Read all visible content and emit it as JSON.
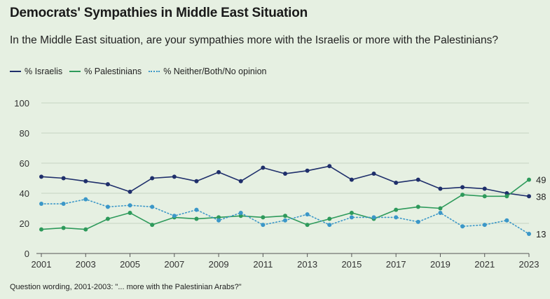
{
  "header": {
    "title": "Democrats' Sympathies in Middle East Situation",
    "subtitle": "In the Middle East situation, are your sympathies more with the Israelis or more with the Palestinians?"
  },
  "legend": [
    {
      "label": "% Israelis",
      "color": "#1f2f6b",
      "style": "solid"
    },
    {
      "label": "% Palestinians",
      "color": "#2e9a5b",
      "style": "solid"
    },
    {
      "label": "% Neither/Both/No opinion",
      "color": "#3b97c8",
      "style": "dotted"
    }
  ],
  "footnote": "Question wording, 2001-2003: \"... more with the Palestinian Arabs?\"",
  "chart_data": {
    "type": "line",
    "x": [
      2001,
      2002,
      2003,
      2004,
      2005,
      2006,
      2007,
      2008,
      2009,
      2010,
      2011,
      2012,
      2013,
      2014,
      2015,
      2016,
      2017,
      2018,
      2019,
      2020,
      2021,
      2022,
      2023
    ],
    "x_tick_labels": [
      "2001",
      "2003",
      "2005",
      "2007",
      "2009",
      "2011",
      "2013",
      "2015",
      "2017",
      "2019",
      "2021",
      "2023"
    ],
    "y_tick_labels": [
      "0",
      "20",
      "40",
      "60",
      "80",
      "100"
    ],
    "ylim": [
      0,
      100
    ],
    "grid": true,
    "legend_position": "top-left",
    "series": [
      {
        "name": "% Israelis",
        "color": "#1f2f6b",
        "style": "solid",
        "values": [
          51,
          50,
          48,
          46,
          41,
          50,
          51,
          48,
          54,
          48,
          57,
          53,
          55,
          58,
          49,
          53,
          47,
          49,
          43,
          44,
          43,
          40,
          38
        ],
        "end_label": "38"
      },
      {
        "name": "% Palestinians",
        "color": "#2e9a5b",
        "style": "solid",
        "values": [
          16,
          17,
          16,
          23,
          27,
          19,
          24,
          23,
          24,
          25,
          24,
          25,
          19,
          23,
          27,
          23,
          29,
          31,
          30,
          39,
          38,
          38,
          49
        ],
        "end_label": "49"
      },
      {
        "name": "% Neither/Both/No opinion",
        "color": "#3b97c8",
        "style": "dotted",
        "values": [
          33,
          33,
          36,
          31,
          32,
          31,
          25,
          29,
          22,
          27,
          19,
          22,
          26,
          19,
          24,
          24,
          24,
          21,
          27,
          18,
          19,
          22,
          13
        ],
        "end_label": "13"
      }
    ]
  }
}
